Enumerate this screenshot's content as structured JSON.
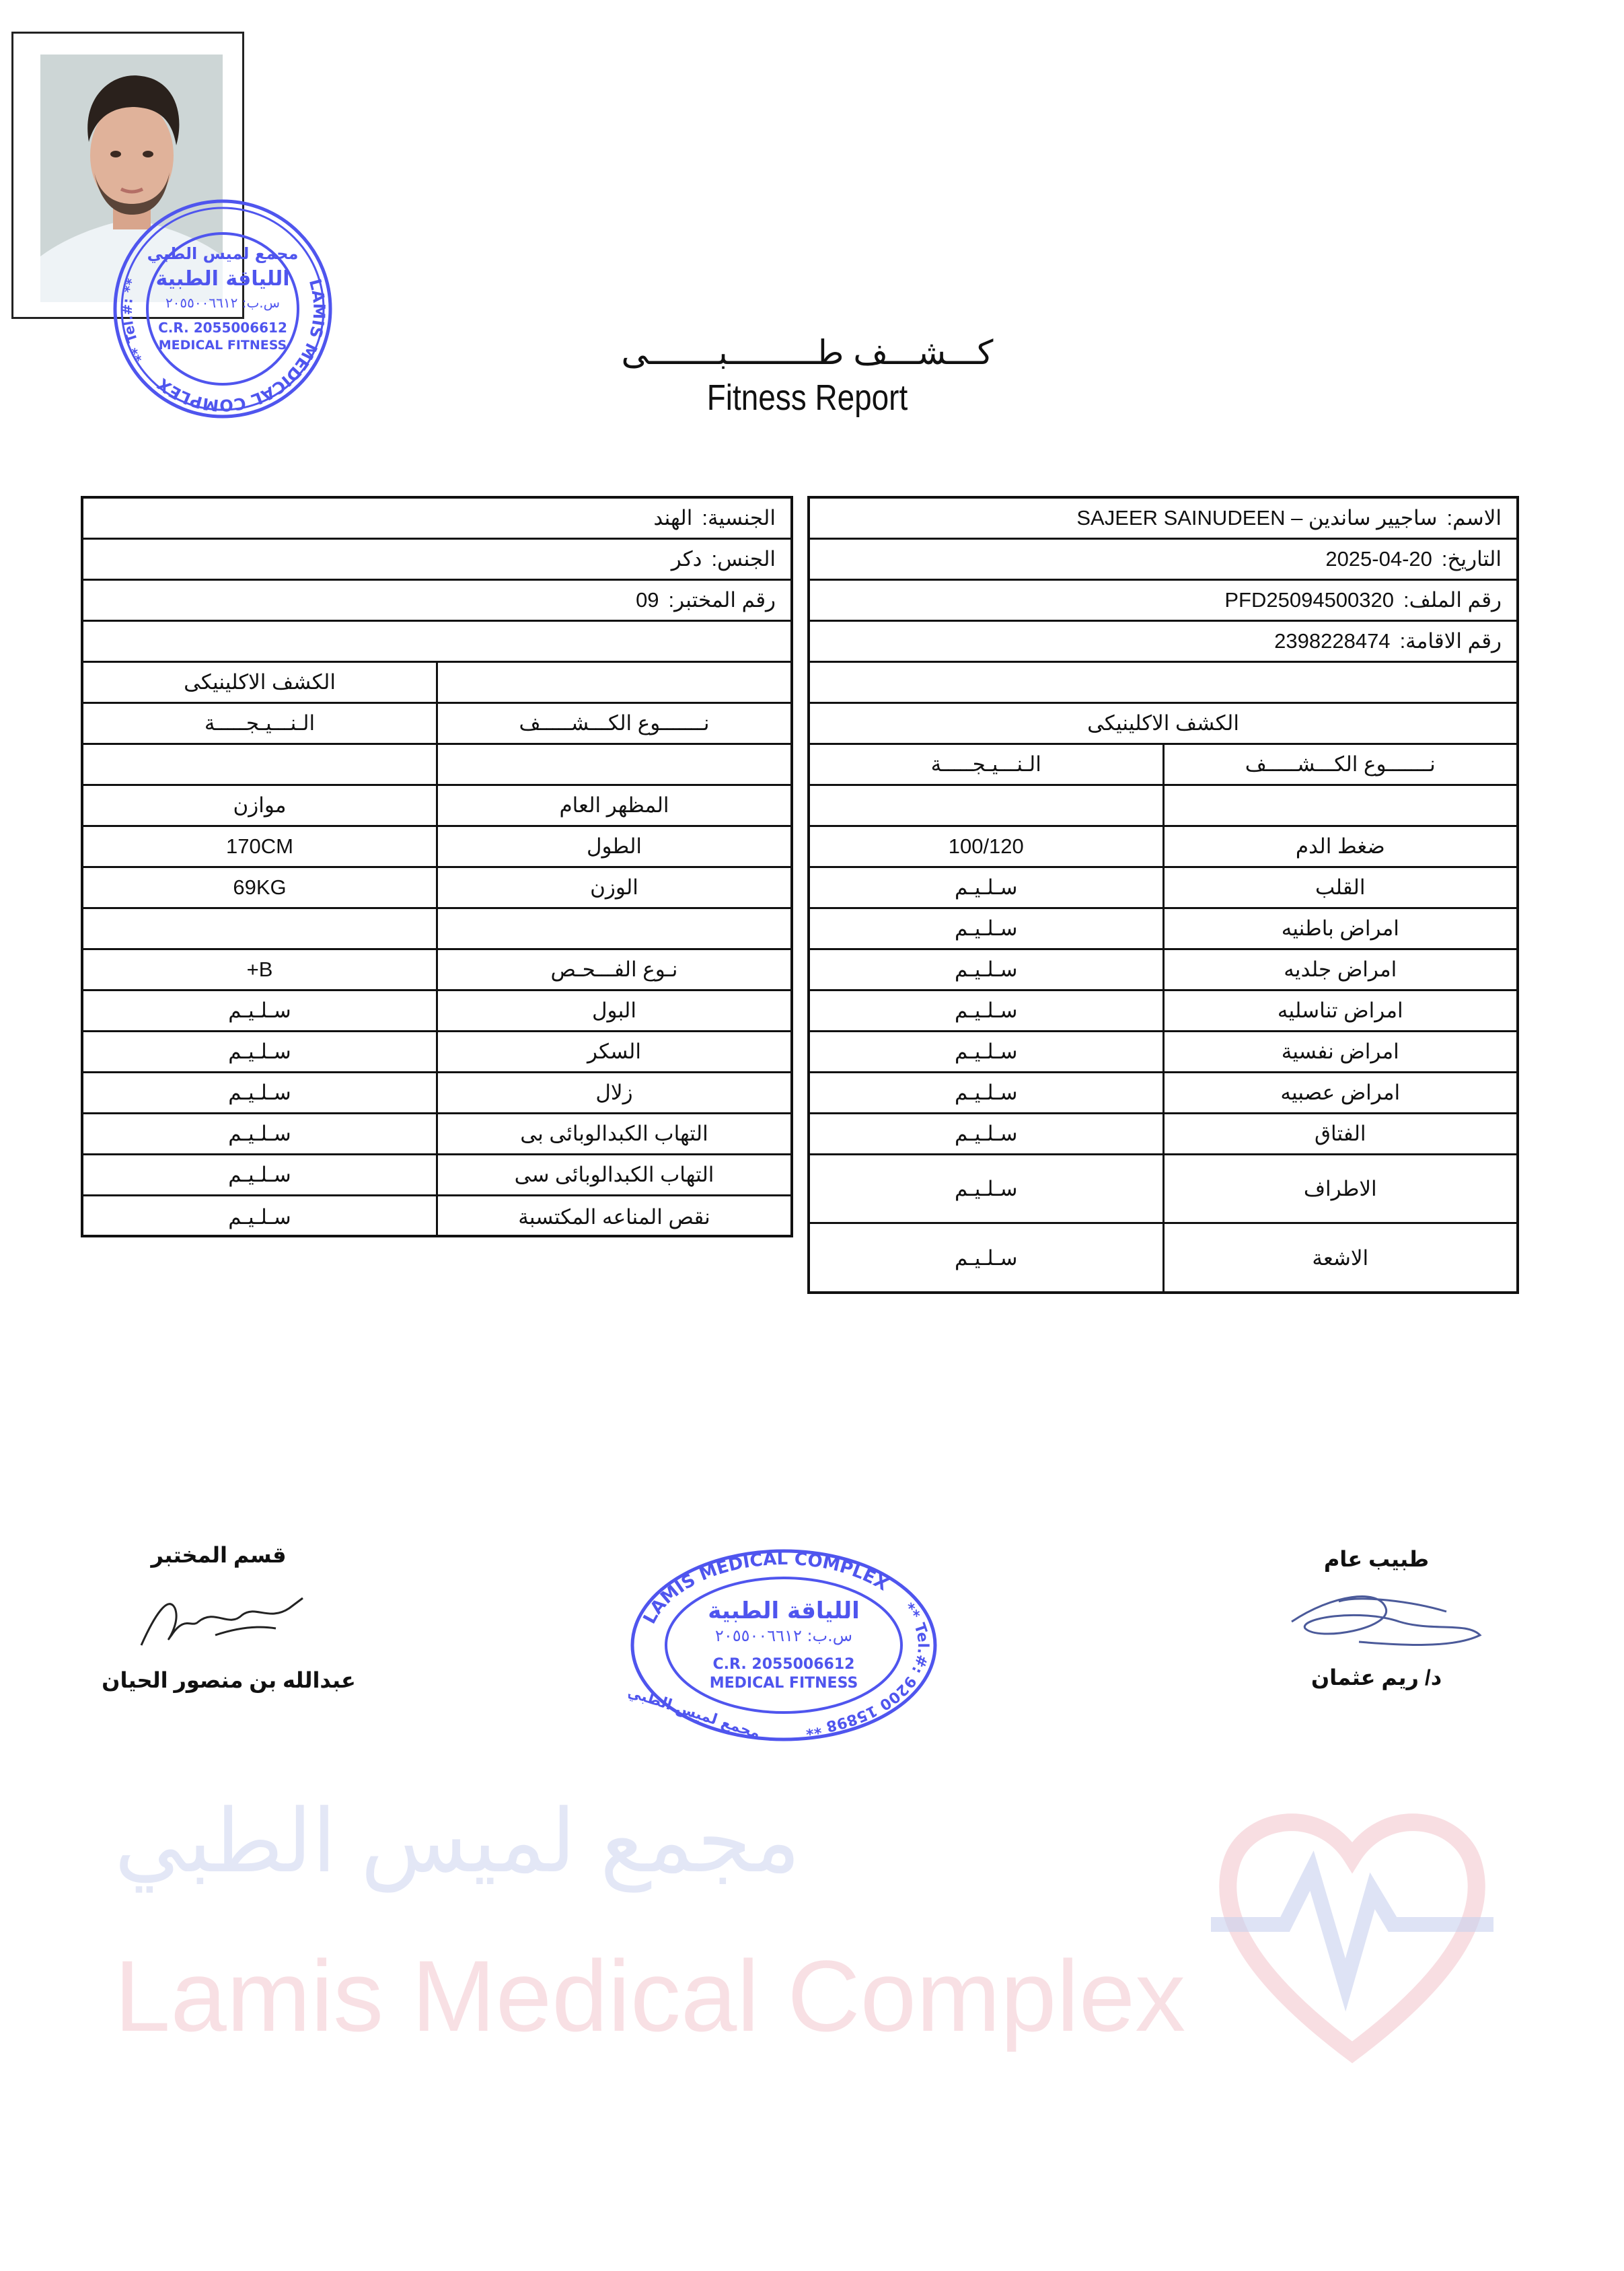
{
  "header": {
    "title_ar": "كـــشـــف طـــــــــبـــــــى",
    "title_en": "Fitness Report"
  },
  "colors": {
    "stamp": "#4f55ee",
    "watermark_red": "#f3c8cf",
    "watermark_blue": "#c8d0ee"
  },
  "watermark": {
    "ar": "مجمع لميس الطبي",
    "en": "Lamis Medical Complex"
  },
  "stamp_round": {
    "arc_ar": "مجمع لميس الطبي",
    "arc_en": "LAMIS MEDICAL COMPLEX",
    "tel_label": "** Tel.#: **",
    "line1": "اللياقة الطبية",
    "line2": "س.ب: ٢٠٥٥٠٠٦٦١٢",
    "line3": "C.R. 2055006612",
    "line4": "MEDICAL FITNESS"
  },
  "stamp_oval": {
    "arc_en": "LAMIS MEDICAL COMPLEX",
    "tel": "** Tel.#: 9200 15898 **",
    "arc_ar": "مجمع لميس الطبي",
    "line1": "اللياقة الطبية",
    "line2": "س.ب: ٢٠٥٥٠٠٦٦١٢",
    "line3": "C.R. 2055006612",
    "line4": "MEDICAL FITNESS"
  },
  "right_table": {
    "info": [
      {
        "label": "الاسم:",
        "value": "ساجيير ساندين – SAJEER SAINUDEEN"
      },
      {
        "label": "التاريخ:",
        "value": "2025-04-20"
      },
      {
        "label": "رقم الملف:",
        "value": "PFD25094500320"
      },
      {
        "label": "رقم الاقامة:",
        "value": "2398228474"
      }
    ],
    "clinical_header": "الكشف الاكلينيكى",
    "col_test": "نـــــــوع الكـــشـــــف",
    "col_result": "الـنـــيـجـــــة",
    "tests": [
      {
        "name": "ضغط الدم",
        "result": "100/120"
      },
      {
        "name": "القلب",
        "result": "سـلـيـم"
      },
      {
        "name": "امراض باطنيه",
        "result": "سـلـيـم"
      },
      {
        "name": "امراض جلديه",
        "result": "سـلـيـم"
      },
      {
        "name": "امراض تناسليه",
        "result": "سـلـيـم"
      },
      {
        "name": "امراض نفسية",
        "result": "سـلـيـم"
      },
      {
        "name": "امراض عصبيه",
        "result": "سـلـيـم"
      },
      {
        "name": "الفتاق",
        "result": "سـلـيـم"
      },
      {
        "name": "الاطراف",
        "result": "سـلـيـم"
      },
      {
        "name": "الاشعة",
        "result": "سـلـيـم"
      }
    ]
  },
  "left_table": {
    "info": [
      {
        "label": "الجنسية:",
        "value": "الهند"
      },
      {
        "label": "الجنس:",
        "value": "دكر"
      },
      {
        "label": "رقم المختبر:",
        "value": "09"
      }
    ],
    "clinical_header": "الكشف الاكلينيكى",
    "col_test": "نـــــــوع الكـــشـــــف",
    "col_result": "الـنـــيـجـــــة",
    "tests": [
      {
        "name": "المظهر العام",
        "result": "موازن"
      },
      {
        "name": "الطول",
        "result": "170CM"
      },
      {
        "name": "الوزن",
        "result": "69KG"
      },
      {
        "name": "",
        "result": ""
      },
      {
        "name": "نـوع الفـــحـص",
        "result": "B+"
      },
      {
        "name": "البول",
        "result": "سـلـيـم"
      },
      {
        "name": "السكر",
        "result": "سـلـيـم"
      },
      {
        "name": "زلال",
        "result": "سـلـيـم"
      },
      {
        "name": "التهاب الكبدالوبائى بى",
        "result": "سـلـيـم"
      },
      {
        "name": "التهاب الكبدالوبائى سى",
        "result": "سـلـيـم"
      },
      {
        "name": "نقص المناعه المكتسبة",
        "result": "سـلـيـم"
      }
    ]
  },
  "signatures": {
    "lab_title": "قسم المختبر",
    "lab_name": "عبدالله بن منصور الحيان",
    "doctor_title": "طبيب عام",
    "doctor_name": "د/ ريم عثمان"
  }
}
